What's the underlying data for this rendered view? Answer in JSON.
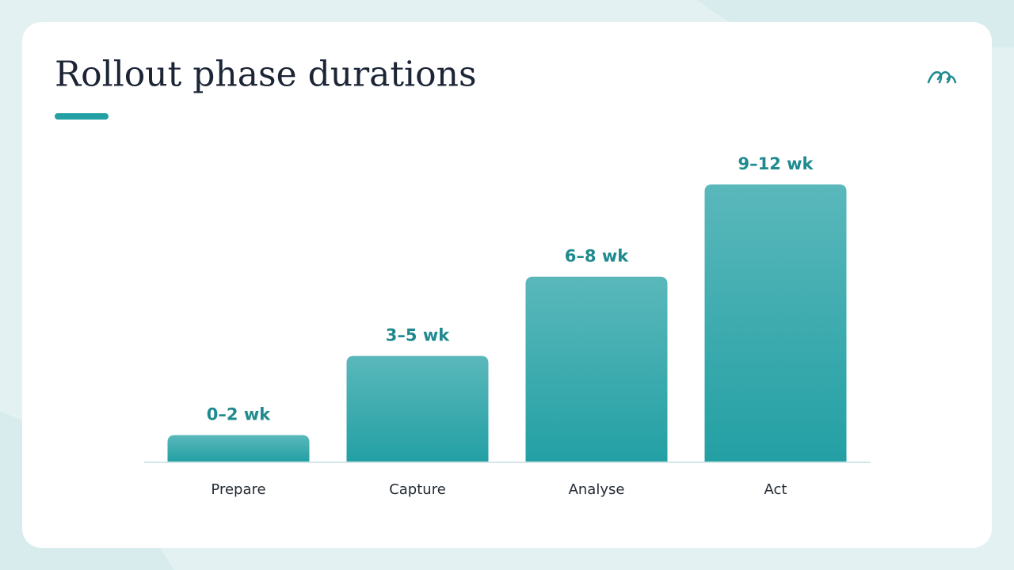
{
  "chart_data": {
    "type": "bar",
    "title": "Rollout phase durations",
    "categories": [
      "Prepare",
      "Capture",
      "Analyse",
      "Act"
    ],
    "values": [
      1,
      4,
      7,
      10.5
    ],
    "value_labels": [
      "0–2 wk",
      "3–5 wk",
      "6–8 wk",
      "9–12 wk"
    ],
    "color": "#23a0a4",
    "ylim": [
      0,
      12
    ]
  }
}
